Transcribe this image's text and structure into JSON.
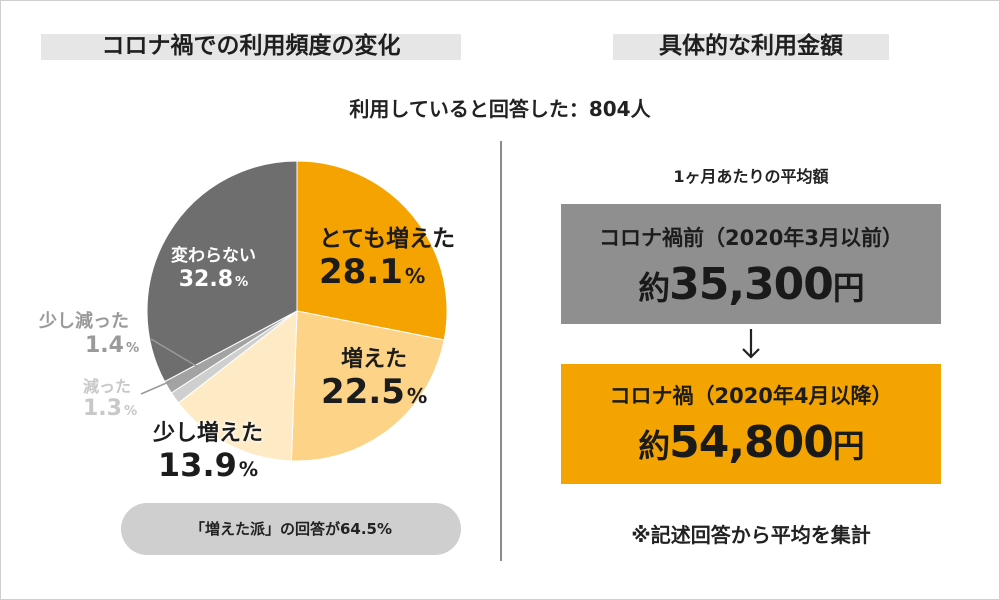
{
  "left_title": "コロナ禍での利用頻度の変化",
  "right_title": "具体的な利用金額",
  "subtitle": "利用していると回答した：804人",
  "chart_data": {
    "type": "pie",
    "title": "コロナ禍での利用頻度の変化",
    "unit": "%",
    "slices": [
      {
        "label": "とても増えた",
        "value": 28.1,
        "value_text": "28.1",
        "color": "#f5a300"
      },
      {
        "label": "増えた",
        "value": 22.5,
        "value_text": "22.5",
        "color": "#fdd387"
      },
      {
        "label": "少し増えた",
        "value": 13.9,
        "value_text": "13.9",
        "color": "#feebc6"
      },
      {
        "label": "減った",
        "value": 1.3,
        "value_text": "1.3",
        "color": "#cfcfcf"
      },
      {
        "label": "少し減った",
        "value": 1.4,
        "value_text": "1.4",
        "color": "#a3a3a3"
      },
      {
        "label": "変わらない",
        "value": 32.8,
        "value_text": "32.8",
        "color": "#6e6e6e"
      }
    ]
  },
  "summary": "「増えた派」の回答が64.5%",
  "avg_label": "1ヶ月あたりの平均額",
  "before": {
    "label": "コロナ禍前（2020年3月以前）",
    "prefix": "約",
    "amount": "35,300",
    "suffix": "円",
    "color": "#8f8f8f"
  },
  "after": {
    "label": "コロナ禍（2020年4月以降）",
    "prefix": "約",
    "amount": "54,800",
    "suffix": "円",
    "color": "#f3a400"
  },
  "arrow_icon": "down-arrow-icon",
  "note": "※記述回答から平均を集計"
}
